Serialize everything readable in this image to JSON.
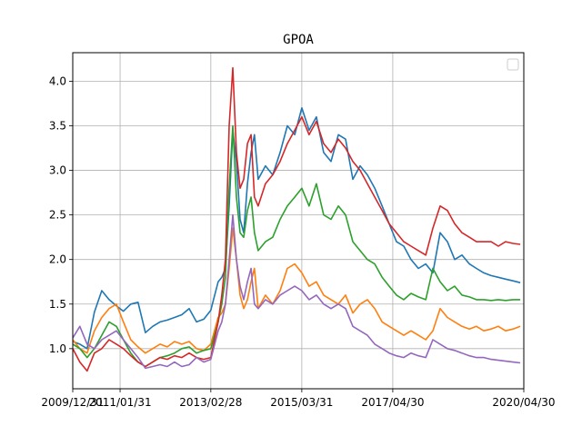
{
  "chart_data": {
    "type": "line",
    "title": "GPOA",
    "xlabel": "",
    "ylabel": "",
    "x_ticks": [
      "2009/12/31",
      "2011/01/31",
      "2013/02/28",
      "2015/03/31",
      "2017/04/30",
      "2020/04/30"
    ],
    "y_ticks": [
      "1.0",
      "1.5",
      "2.0",
      "2.5",
      "3.0",
      "3.5",
      "4.0"
    ],
    "x_range": [
      "2009-12-31",
      "2020-04-30"
    ],
    "ylim": [
      0.55,
      4.32
    ],
    "grid": true,
    "legend": {
      "position": "top-right",
      "entries": []
    },
    "series": [
      {
        "color": "#1f77b4",
        "x": [
          "2009-12-31",
          "2010-02-28",
          "2010-04-30",
          "2010-06-30",
          "2010-08-31",
          "2010-10-31",
          "2010-12-31",
          "2011-02-28",
          "2011-04-30",
          "2011-06-30",
          "2011-08-31",
          "2011-10-31",
          "2011-12-31",
          "2012-02-29",
          "2012-04-30",
          "2012-06-30",
          "2012-08-31",
          "2012-10-31",
          "2012-12-31",
          "2013-02-28",
          "2013-04-30",
          "2013-05-31",
          "2013-06-30",
          "2013-07-31",
          "2013-08-31",
          "2013-09-30",
          "2013-10-31",
          "2013-11-30",
          "2013-12-31",
          "2014-01-31",
          "2014-02-28",
          "2014-03-31",
          "2014-05-31",
          "2014-07-31",
          "2014-09-30",
          "2014-11-30",
          "2015-01-31",
          "2015-03-31",
          "2015-05-31",
          "2015-07-31",
          "2015-09-30",
          "2015-11-30",
          "2016-01-31",
          "2016-03-31",
          "2016-05-31",
          "2016-07-31",
          "2016-09-30",
          "2016-11-30",
          "2017-01-31",
          "2017-03-31",
          "2017-05-31",
          "2017-07-31",
          "2017-09-30",
          "2017-11-30",
          "2018-01-31",
          "2018-03-31",
          "2018-05-31",
          "2018-07-31",
          "2018-09-30",
          "2018-11-30",
          "2019-01-31",
          "2019-03-31",
          "2019-05-31",
          "2019-07-31",
          "2019-09-30",
          "2019-11-30",
          "2020-01-31",
          "2020-03-31"
        ],
        "values": [
          1.08,
          1.05,
          1.0,
          1.41,
          1.65,
          1.55,
          1.48,
          1.42,
          1.5,
          1.52,
          1.18,
          1.25,
          1.3,
          1.32,
          1.35,
          1.38,
          1.45,
          1.3,
          1.33,
          1.43,
          1.75,
          1.8,
          1.9,
          2.6,
          3.45,
          3.1,
          2.45,
          2.3,
          2.85,
          3.2,
          3.4,
          2.9,
          3.05,
          2.95,
          3.2,
          3.5,
          3.4,
          3.7,
          3.45,
          3.6,
          3.2,
          3.1,
          3.4,
          3.35,
          2.9,
          3.05,
          2.95,
          2.8,
          2.6,
          2.4,
          2.2,
          2.15,
          2.0,
          1.9,
          1.95,
          1.85,
          2.3,
          2.2,
          2.0,
          2.05,
          1.95,
          1.9,
          1.85,
          1.82,
          1.8,
          1.78,
          1.76,
          1.74
        ]
      },
      {
        "color": "#ff7f0e",
        "x": [
          "2009-12-31",
          "2010-02-28",
          "2010-04-30",
          "2010-06-30",
          "2010-08-31",
          "2010-10-31",
          "2010-12-31",
          "2011-02-28",
          "2011-04-30",
          "2011-06-30",
          "2011-08-31",
          "2011-10-31",
          "2011-12-31",
          "2012-02-29",
          "2012-04-30",
          "2012-06-30",
          "2012-08-31",
          "2012-10-31",
          "2012-12-31",
          "2013-02-28",
          "2013-04-30",
          "2013-05-31",
          "2013-06-30",
          "2013-07-31",
          "2013-08-31",
          "2013-09-30",
          "2013-10-31",
          "2013-11-30",
          "2013-12-31",
          "2014-01-31",
          "2014-02-28",
          "2014-03-31",
          "2014-05-31",
          "2014-07-31",
          "2014-09-30",
          "2014-11-30",
          "2015-01-31",
          "2015-03-31",
          "2015-05-31",
          "2015-07-31",
          "2015-09-30",
          "2015-11-30",
          "2016-01-31",
          "2016-03-31",
          "2016-05-31",
          "2016-07-31",
          "2016-09-30",
          "2016-11-30",
          "2017-01-31",
          "2017-03-31",
          "2017-05-31",
          "2017-07-31",
          "2017-09-30",
          "2017-11-30",
          "2018-01-31",
          "2018-03-31",
          "2018-05-31",
          "2018-07-31",
          "2018-09-30",
          "2018-11-30",
          "2019-01-31",
          "2019-03-31",
          "2019-05-31",
          "2019-07-31",
          "2019-09-30",
          "2019-11-30",
          "2020-01-31",
          "2020-03-31"
        ],
        "values": [
          1.1,
          1.0,
          0.95,
          1.2,
          1.35,
          1.45,
          1.5,
          1.3,
          1.1,
          1.02,
          0.95,
          1.0,
          1.05,
          1.02,
          1.08,
          1.05,
          1.08,
          1.0,
          0.98,
          1.05,
          1.35,
          1.4,
          1.5,
          1.9,
          2.35,
          2.0,
          1.6,
          1.45,
          1.55,
          1.75,
          1.9,
          1.45,
          1.6,
          1.5,
          1.65,
          1.9,
          1.95,
          1.85,
          1.7,
          1.75,
          1.6,
          1.55,
          1.5,
          1.6,
          1.4,
          1.5,
          1.55,
          1.45,
          1.3,
          1.25,
          1.2,
          1.15,
          1.2,
          1.15,
          1.1,
          1.2,
          1.45,
          1.35,
          1.3,
          1.25,
          1.22,
          1.25,
          1.2,
          1.22,
          1.25,
          1.2,
          1.22,
          1.25
        ]
      },
      {
        "color": "#2ca02c",
        "x": [
          "2009-12-31",
          "2010-02-28",
          "2010-04-30",
          "2010-06-30",
          "2010-08-31",
          "2010-10-31",
          "2010-12-31",
          "2011-02-28",
          "2011-04-30",
          "2011-06-30",
          "2011-08-31",
          "2011-10-31",
          "2011-12-31",
          "2012-02-29",
          "2012-04-30",
          "2012-06-30",
          "2012-08-31",
          "2012-10-31",
          "2012-12-31",
          "2013-02-28",
          "2013-04-30",
          "2013-05-31",
          "2013-06-30",
          "2013-07-31",
          "2013-08-31",
          "2013-09-30",
          "2013-10-31",
          "2013-11-30",
          "2013-12-31",
          "2014-01-31",
          "2014-02-28",
          "2014-03-31",
          "2014-05-31",
          "2014-07-31",
          "2014-09-30",
          "2014-11-30",
          "2015-01-31",
          "2015-03-31",
          "2015-05-31",
          "2015-07-31",
          "2015-09-30",
          "2015-11-30",
          "2016-01-31",
          "2016-03-31",
          "2016-05-31",
          "2016-07-31",
          "2016-09-30",
          "2016-11-30",
          "2017-01-31",
          "2017-03-31",
          "2017-05-31",
          "2017-07-31",
          "2017-09-30",
          "2017-11-30",
          "2018-01-31",
          "2018-03-31",
          "2018-05-31",
          "2018-07-31",
          "2018-09-30",
          "2018-11-30",
          "2019-01-31",
          "2019-03-31",
          "2019-05-31",
          "2019-07-31",
          "2019-09-30",
          "2019-11-30",
          "2020-01-31",
          "2020-03-31"
        ],
        "values": [
          1.05,
          1.0,
          0.9,
          1.0,
          1.15,
          1.3,
          1.25,
          1.1,
          0.95,
          0.85,
          0.8,
          0.85,
          0.9,
          0.92,
          0.95,
          1.0,
          1.02,
          0.95,
          0.98,
          1.0,
          1.3,
          1.5,
          1.8,
          2.8,
          3.5,
          2.7,
          2.3,
          2.25,
          2.55,
          2.7,
          2.3,
          2.1,
          2.2,
          2.25,
          2.45,
          2.6,
          2.7,
          2.8,
          2.6,
          2.85,
          2.5,
          2.45,
          2.6,
          2.5,
          2.2,
          2.1,
          2.0,
          1.95,
          1.8,
          1.7,
          1.6,
          1.55,
          1.62,
          1.58,
          1.55,
          1.9,
          1.75,
          1.65,
          1.7,
          1.6,
          1.58,
          1.55,
          1.55,
          1.54,
          1.55,
          1.54,
          1.55,
          1.55
        ]
      },
      {
        "color": "#d62728",
        "x": [
          "2009-12-31",
          "2010-02-28",
          "2010-04-30",
          "2010-06-30",
          "2010-08-31",
          "2010-10-31",
          "2010-12-31",
          "2011-02-28",
          "2011-04-30",
          "2011-06-30",
          "2011-08-31",
          "2011-10-31",
          "2011-12-31",
          "2012-02-29",
          "2012-04-30",
          "2012-06-30",
          "2012-08-31",
          "2012-10-31",
          "2012-12-31",
          "2013-02-28",
          "2013-04-30",
          "2013-05-31",
          "2013-06-30",
          "2013-07-31",
          "2013-08-31",
          "2013-09-30",
          "2013-10-31",
          "2013-11-30",
          "2013-12-31",
          "2014-01-31",
          "2014-02-28",
          "2014-03-31",
          "2014-05-31",
          "2014-07-31",
          "2014-09-30",
          "2014-11-30",
          "2015-01-31",
          "2015-03-31",
          "2015-05-31",
          "2015-07-31",
          "2015-09-30",
          "2015-11-30",
          "2016-01-31",
          "2016-03-31",
          "2016-05-31",
          "2016-07-31",
          "2016-09-30",
          "2016-11-30",
          "2017-01-31",
          "2017-03-31",
          "2017-05-31",
          "2017-07-31",
          "2017-09-30",
          "2017-11-30",
          "2018-01-31",
          "2018-03-31",
          "2018-05-31",
          "2018-07-31",
          "2018-09-30",
          "2018-11-30",
          "2019-01-31",
          "2019-03-31",
          "2019-05-31",
          "2019-07-31",
          "2019-09-30",
          "2019-11-30",
          "2020-01-31",
          "2020-03-31"
        ],
        "values": [
          1.0,
          0.85,
          0.75,
          0.95,
          1.0,
          1.1,
          1.05,
          1.0,
          0.92,
          0.85,
          0.8,
          0.85,
          0.9,
          0.88,
          0.92,
          0.9,
          0.95,
          0.9,
          0.88,
          0.9,
          1.3,
          1.6,
          2.0,
          3.5,
          4.15,
          3.2,
          2.8,
          2.9,
          3.3,
          3.4,
          2.7,
          2.6,
          2.85,
          2.95,
          3.1,
          3.3,
          3.45,
          3.6,
          3.4,
          3.55,
          3.3,
          3.2,
          3.35,
          3.25,
          3.1,
          3.0,
          2.85,
          2.7,
          2.55,
          2.4,
          2.3,
          2.2,
          2.15,
          2.1,
          2.05,
          2.35,
          2.6,
          2.55,
          2.4,
          2.3,
          2.25,
          2.2,
          2.2,
          2.2,
          2.15,
          2.2,
          2.18,
          2.17
        ]
      },
      {
        "color": "#9467bd",
        "x": [
          "2009-12-31",
          "2010-02-28",
          "2010-04-30",
          "2010-06-30",
          "2010-08-31",
          "2010-10-31",
          "2010-12-31",
          "2011-02-28",
          "2011-04-30",
          "2011-06-30",
          "2011-08-31",
          "2011-10-31",
          "2011-12-31",
          "2012-02-29",
          "2012-04-30",
          "2012-06-30",
          "2012-08-31",
          "2012-10-31",
          "2012-12-31",
          "2013-02-28",
          "2013-04-30",
          "2013-05-31",
          "2013-06-30",
          "2013-07-31",
          "2013-08-31",
          "2013-09-30",
          "2013-10-31",
          "2013-11-30",
          "2013-12-31",
          "2014-01-31",
          "2014-02-28",
          "2014-03-31",
          "2014-05-31",
          "2014-07-31",
          "2014-09-30",
          "2014-11-30",
          "2015-01-31",
          "2015-03-31",
          "2015-05-31",
          "2015-07-31",
          "2015-09-30",
          "2015-11-30",
          "2016-01-31",
          "2016-03-31",
          "2016-05-31",
          "2016-07-31",
          "2016-09-30",
          "2016-11-30",
          "2017-01-31",
          "2017-03-31",
          "2017-05-31",
          "2017-07-31",
          "2017-09-30",
          "2017-11-30",
          "2018-01-31",
          "2018-03-31",
          "2018-05-31",
          "2018-07-31",
          "2018-09-30",
          "2018-11-30",
          "2019-01-31",
          "2019-03-31",
          "2019-05-31",
          "2019-07-31",
          "2019-09-30",
          "2019-11-30",
          "2020-01-31",
          "2020-03-31"
        ],
        "values": [
          1.12,
          1.25,
          1.05,
          1.0,
          1.1,
          1.15,
          1.2,
          1.1,
          1.0,
          0.9,
          0.78,
          0.8,
          0.82,
          0.8,
          0.85,
          0.8,
          0.82,
          0.9,
          0.85,
          0.88,
          1.2,
          1.3,
          1.5,
          2.0,
          2.5,
          2.0,
          1.7,
          1.55,
          1.75,
          1.9,
          1.5,
          1.45,
          1.55,
          1.5,
          1.6,
          1.65,
          1.7,
          1.65,
          1.55,
          1.6,
          1.5,
          1.45,
          1.5,
          1.45,
          1.25,
          1.2,
          1.15,
          1.05,
          1.0,
          0.95,
          0.92,
          0.9,
          0.95,
          0.92,
          0.9,
          1.1,
          1.05,
          1.0,
          0.98,
          0.95,
          0.92,
          0.9,
          0.9,
          0.88,
          0.87,
          0.86,
          0.85,
          0.84
        ]
      }
    ]
  }
}
